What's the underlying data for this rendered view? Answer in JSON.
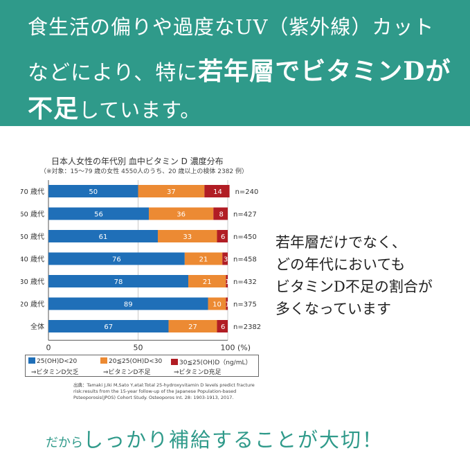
{
  "header": {
    "line1": "食生活の偏りや過度なUV（紫外線）カット",
    "line2_pre": "などにより、特に",
    "line2_emph": "若年層でビタミンD",
    "line2_post": "が",
    "line3_emph": "不足",
    "line3_post": "しています。"
  },
  "side_text": [
    "若年層だけでなく、",
    "どの年代においても",
    "ビタミンD不足の割合が",
    "多くなっています"
  ],
  "cta": {
    "small": "だから",
    "big": "しっかり補給することが大切！"
  },
  "colors": {
    "teal": "#2f9a8a",
    "blue": "#1f6fb8",
    "orange": "#ec8a33",
    "red": "#b11d24"
  },
  "legend": [
    {
      "label": "25(OH)D<20",
      "sub": "⇒ビタミンD欠乏"
    },
    {
      "label": "20≦25(OH)D<30",
      "sub": "⇒ビタミンD不足"
    },
    {
      "label": "30≦25(OH)D（ng/mL）",
      "sub": "⇒ビタミンD充足"
    }
  ],
  "source": [
    "出典：Tamaki J,Iki M,Sato Y,etal:Total 25-hydroxyvitamin D levels predict fracture",
    "risk:results from the 15-year follow-up of the Japanese Population-based",
    "Psteoporosis(JPOS) Cohort Study. Osteoporos Int. 28: 1903-1913, 2017."
  ],
  "chart_data": {
    "type": "bar",
    "orientation": "horizontal",
    "stacked": true,
    "title": "日本人女性の年代別 血中ビタミン D 濃度分布",
    "subtitle": "（※対象：15〜79 歳の女性 4550人のうち、20 歳以上の検体 2382 例）",
    "categories": [
      "70 歳代",
      "60 歳代",
      "50 歳代",
      "40 歳代",
      "30 歳代",
      "20 歳代",
      "全体"
    ],
    "n_labels": [
      "n=240",
      "n=427",
      "n=450",
      "n=458",
      "n=432",
      "n=375",
      "n=2382"
    ],
    "series": [
      {
        "name": "25(OH)D<20",
        "values": [
          50,
          56,
          61,
          76,
          78,
          89,
          67
        ]
      },
      {
        "name": "20≦25(OH)D<30",
        "values": [
          37,
          36,
          33,
          21,
          21,
          10,
          27
        ]
      },
      {
        "name": "30≦25(OH)D",
        "values": [
          14,
          8,
          6,
          3,
          1,
          1,
          6
        ]
      }
    ],
    "xlim": [
      0,
      100
    ],
    "xticks": [
      "0",
      "50",
      "100"
    ],
    "xunit": "(%)",
    "grid": true,
    "legend_position": "bottom"
  }
}
